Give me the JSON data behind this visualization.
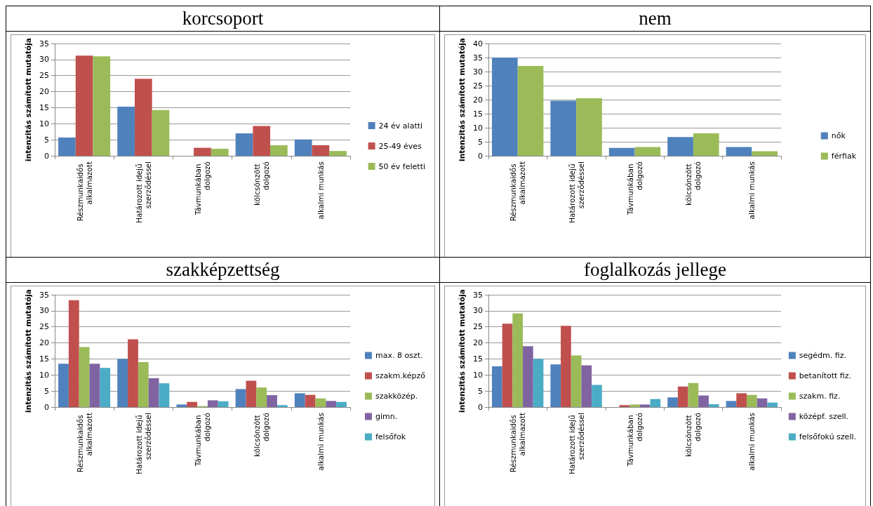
{
  "chart_data": [
    {
      "type": "bar",
      "title": "korcsoport",
      "ylabel": "intenzitás számított mutatója",
      "categories": [
        "Részmunkaidős alkalmazott",
        "Határozott idejű szerződéssel",
        "Távmunkában dolgozó",
        "kölcsönzött dolgozó",
        "alkalmi munkás"
      ],
      "ylim": [
        0,
        35
      ],
      "yticks": [
        0,
        5,
        10,
        15,
        20,
        25,
        30,
        35
      ],
      "grid": "y",
      "legend": "right",
      "series": [
        {
          "name": "24 év alatti",
          "color": "#4f81bd",
          "values": [
            5.7,
            15.3,
            0,
            7.0,
            5.1
          ]
        },
        {
          "name": "25-49 éves",
          "color": "#c0504d",
          "values": [
            31.2,
            24.0,
            2.5,
            9.3,
            3.3
          ]
        },
        {
          "name": "50 év feletti",
          "color": "#9bbb59",
          "values": [
            31.0,
            14.3,
            2.2,
            3.3,
            1.5
          ]
        }
      ]
    },
    {
      "type": "bar",
      "title": "nem",
      "ylabel": "intenzitás számított mutatója",
      "categories": [
        "Részmunkaidős alkalmazott",
        "Határozott idejű szerződéssel",
        "Távmunkában dolgozó",
        "kölcsönzött dolgozó",
        "alkalmi munkás"
      ],
      "ylim": [
        0,
        40
      ],
      "yticks": [
        0,
        5,
        10,
        15,
        20,
        25,
        30,
        35,
        40
      ],
      "grid": "y",
      "legend": "right",
      "series": [
        {
          "name": "nők",
          "color": "#4f81bd",
          "values": [
            35.0,
            19.6,
            2.8,
            6.7,
            3.1
          ]
        },
        {
          "name": "férfiak",
          "color": "#9bbb59",
          "values": [
            32.0,
            20.5,
            3.1,
            8.0,
            1.6
          ]
        }
      ]
    },
    {
      "type": "bar",
      "title": "szakképzettség",
      "ylabel": "intenzitás számított mutatója",
      "categories": [
        "Részmunkaidős alkalmazott",
        "Határozott idejű szerződéssel",
        "Távmunkában dolgozó",
        "kölcsönzött dolgozó",
        "alkalmi munkás"
      ],
      "ylim": [
        0,
        35
      ],
      "yticks": [
        0,
        5,
        10,
        15,
        20,
        25,
        30,
        35
      ],
      "grid": "y",
      "legend": "right",
      "series": [
        {
          "name": "max. 8 oszt.",
          "color": "#4f81bd",
          "values": [
            13.5,
            15.0,
            0.8,
            5.6,
            4.3
          ]
        },
        {
          "name": "szakm.képző",
          "color": "#c0504d",
          "values": [
            33.3,
            21.1,
            1.6,
            8.2,
            3.8
          ]
        },
        {
          "name": "szakközép.",
          "color": "#9bbb59",
          "values": [
            18.7,
            14.0,
            0.3,
            6.1,
            2.7
          ]
        },
        {
          "name": "gimn.",
          "color": "#8064a2",
          "values": [
            13.5,
            9.0,
            2.1,
            3.7,
            1.9
          ]
        },
        {
          "name": "felsőfok",
          "color": "#4bacc6",
          "values": [
            12.2,
            7.4,
            1.8,
            0.6,
            1.6
          ]
        }
      ]
    },
    {
      "type": "bar",
      "title": "foglalkozás jellege",
      "ylabel": "intenzitás számított mutatója",
      "categories": [
        "Részmunkaidős alkalmazott",
        "Határozott idejű szerződéssel",
        "Távmunkában dolgozó",
        "kölcsönzött dolgozó",
        "alkalmi munkás"
      ],
      "ylim": [
        0,
        35
      ],
      "yticks": [
        0,
        5,
        10,
        15,
        20,
        25,
        30,
        35
      ],
      "grid": "y",
      "legend": "right",
      "series": [
        {
          "name": "segédm. fiz.",
          "color": "#4f81bd",
          "values": [
            12.7,
            13.3,
            0,
            3.0,
            1.9
          ]
        },
        {
          "name": "betanított fiz.",
          "color": "#c0504d",
          "values": [
            26.0,
            25.3,
            0.6,
            6.4,
            4.3
          ]
        },
        {
          "name": "szakm. fiz.",
          "color": "#9bbb59",
          "values": [
            29.2,
            16.1,
            0.8,
            7.5,
            3.8
          ]
        },
        {
          "name": "középf. szell.",
          "color": "#8064a2",
          "values": [
            19.0,
            13.0,
            0.8,
            3.6,
            2.7
          ]
        },
        {
          "name": "felsőfokú szell.",
          "color": "#4bacc6",
          "values": [
            15.0,
            6.9,
            2.5,
            0.9,
            1.4
          ]
        }
      ]
    }
  ]
}
